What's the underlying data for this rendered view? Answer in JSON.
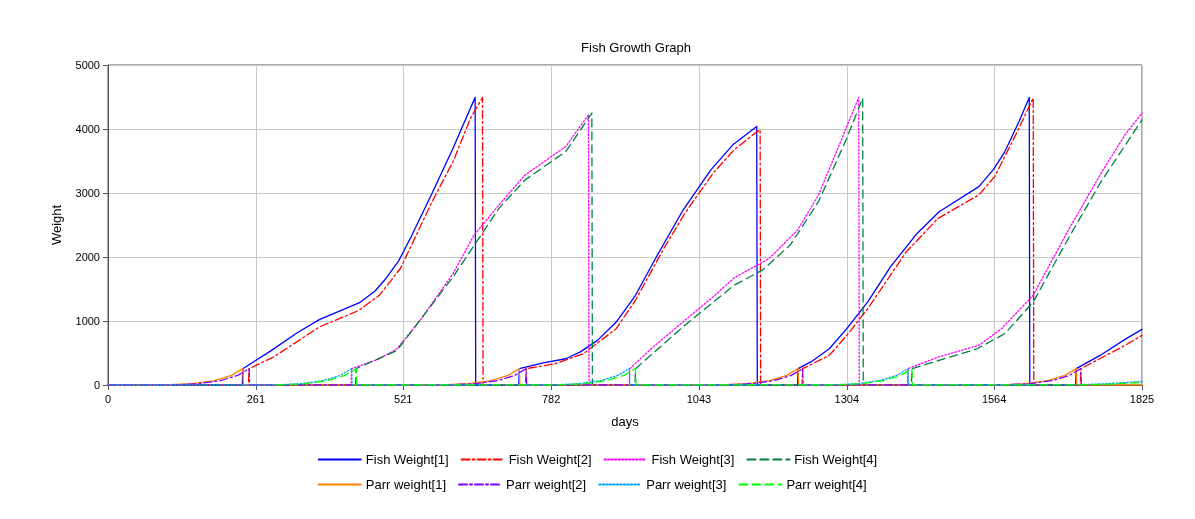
{
  "chart_data": {
    "type": "line",
    "title": "Fish Growth Graph",
    "xlabel": "days",
    "ylabel": "Weight",
    "xlim": [
      0,
      1825
    ],
    "xticks": [
      0,
      261,
      521,
      782,
      1043,
      1304,
      1564,
      1825
    ],
    "ylim": [
      0,
      5000
    ],
    "yticks": [
      0,
      1000,
      2000,
      3000,
      4000,
      5000
    ],
    "grid": true,
    "legend": "bottom",
    "marker": "none",
    "series": [
      {
        "name": "Fish Weight[1]",
        "color": "#0000ff",
        "line_style": "solid",
        "x": [
          0,
          237,
          238,
          286,
          334,
          373,
          443,
          471,
          489,
          513,
          535,
          572,
          609,
          648,
          649,
          725,
          726,
          768,
          808,
          833,
          864,
          897,
          931,
          968,
          1015,
          1064,
          1104,
          1145,
          1146,
          1217,
          1218,
          1242,
          1273,
          1304,
          1341,
          1381,
          1428,
          1467,
          1537,
          1563,
          1583,
          1608,
          1626,
          1627,
          1708,
          1709,
          1751,
          1795,
          1825
        ],
        "values": [
          0,
          0,
          255,
          525,
          817,
          1021,
          1282,
          1465,
          1648,
          1940,
          2316,
          2995,
          3700,
          4494,
          0,
          0,
          255,
          347,
          410,
          514,
          697,
          984,
          1402,
          2003,
          2734,
          3361,
          3763,
          4039,
          0,
          0,
          255,
          368,
          566,
          880,
          1298,
          1846,
          2368,
          2707,
          3099,
          3370,
          3647,
          4116,
          4494,
          0,
          0,
          255,
          462,
          713,
          870
        ]
      },
      {
        "name": "Fish Weight[2]",
        "color": "#ff0000",
        "line_style": "dashdot",
        "x": [
          0,
          248,
          249,
          292,
          373,
          443,
          479,
          516,
          572,
          609,
          640,
          661,
          662,
          737,
          738,
          789,
          839,
          897,
          931,
          981,
          1018,
          1068,
          1105,
          1142,
          1151,
          1152,
          1225,
          1226,
          1273,
          1304,
          1341,
          1409,
          1465,
          1537,
          1565,
          1602,
          1633,
          1634,
          1716,
          1717,
          1795,
          1825
        ],
        "values": [
          0,
          0,
          255,
          436,
          906,
          1167,
          1402,
          1820,
          2864,
          3491,
          4170,
          4494,
          0,
          0,
          255,
          332,
          488,
          880,
          1324,
          2134,
          2682,
          3309,
          3674,
          3935,
          3987,
          0,
          0,
          255,
          462,
          775,
          1193,
          2081,
          2603,
          2969,
          3256,
          3909,
          4483,
          0,
          0,
          255,
          619,
          776
        ]
      },
      {
        "name": "Fish Weight[3]",
        "color": "#ff00ff",
        "line_style": "dotted",
        "x": [
          0,
          429,
          430,
          479,
          510,
          553,
          609,
          646,
          690,
          736,
          808,
          848,
          849,
          920,
          921,
          962,
          1018,
          1068,
          1105,
          1167,
          1217,
          1254,
          1298,
          1325,
          1326,
          1411,
          1412,
          1465,
          1537,
          1577,
          1633,
          1695,
          1751,
          1795,
          1825
        ],
        "values": [
          0,
          0,
          255,
          410,
          566,
          1036,
          1741,
          2342,
          2812,
          3282,
          3726,
          4222,
          0,
          0,
          255,
          593,
          1010,
          1376,
          1673,
          1976,
          2420,
          2968,
          3909,
          4494,
          0,
          0,
          255,
          436,
          619,
          880,
          1402,
          2420,
          3282,
          3909,
          4248
        ]
      },
      {
        "name": "Fish Weight[4]",
        "color": "#008040",
        "line_style": "dashed",
        "x": [
          0,
          437,
          438,
          510,
          609,
          690,
          736,
          808,
          854,
          855,
          930,
          931,
          1018,
          1105,
          1155,
          1204,
          1254,
          1304,
          1332,
          1333,
          1418,
          1419,
          1534,
          1583,
          1633,
          1695,
          1751,
          1825
        ],
        "values": [
          0,
          0,
          255,
          540,
          1689,
          2760,
          3204,
          3648,
          4248,
          0,
          0,
          255,
          932,
          1559,
          1794,
          2186,
          2864,
          3856,
          4483,
          0,
          0,
          255,
          566,
          802,
          1298,
          2290,
          3152,
          4143
        ]
      },
      {
        "name": "Parr weight[1]",
        "color": "#ff8000",
        "line_style": "solid",
        "x": [
          0,
          98,
          148,
          188,
          218,
          238,
          239,
          586,
          636,
          676,
          706,
          726,
          727,
          1078,
          1128,
          1168,
          1198,
          1218,
          1219,
          1569,
          1619,
          1659,
          1689,
          1709,
          1710,
          1825
        ],
        "values": [
          0,
          0,
          20,
          70,
          150,
          255,
          0,
          0,
          20,
          70,
          150,
          255,
          0,
          0,
          20,
          70,
          150,
          255,
          0,
          0,
          20,
          70,
          150,
          255,
          0,
          0
        ]
      },
      {
        "name": "Parr weight[2]",
        "color": "#8000ff",
        "line_style": "dashdot",
        "x": [
          0,
          109,
          159,
          199,
          229,
          249,
          250,
          598,
          648,
          688,
          718,
          738,
          739,
          1086,
          1136,
          1176,
          1206,
          1226,
          1227,
          1577,
          1627,
          1667,
          1697,
          1717,
          1718
        ],
        "values": [
          0,
          0,
          20,
          70,
          150,
          255,
          0,
          0,
          20,
          70,
          150,
          255,
          0,
          0,
          20,
          70,
          150,
          255,
          0,
          0,
          20,
          70,
          150,
          255,
          0
        ]
      },
      {
        "name": "Parr weight[3]",
        "color": "#00a0ff",
        "line_style": "dotted",
        "x": [
          0,
          290,
          340,
          380,
          410,
          430,
          431,
          780,
          830,
          870,
          900,
          920,
          921,
          1272,
          1322,
          1362,
          1392,
          1412,
          1413,
          1700,
          1760,
          1825
        ],
        "values": [
          0,
          0,
          20,
          70,
          150,
          255,
          0,
          0,
          20,
          70,
          150,
          255,
          0,
          0,
          20,
          70,
          150,
          255,
          0,
          0,
          20,
          55
        ]
      },
      {
        "name": "Parr weight[4]",
        "color": "#00ff00",
        "line_style": "dashed",
        "x": [
          298,
          348,
          388,
          418,
          438,
          439,
          791,
          841,
          881,
          911,
          931,
          932,
          1279,
          1329,
          1369,
          1399,
          1419,
          1420,
          1710,
          1770,
          1825
        ],
        "values": [
          0,
          20,
          70,
          150,
          255,
          0,
          0,
          20,
          70,
          150,
          255,
          0,
          0,
          20,
          70,
          150,
          255,
          0,
          0,
          15,
          40
        ]
      }
    ]
  }
}
